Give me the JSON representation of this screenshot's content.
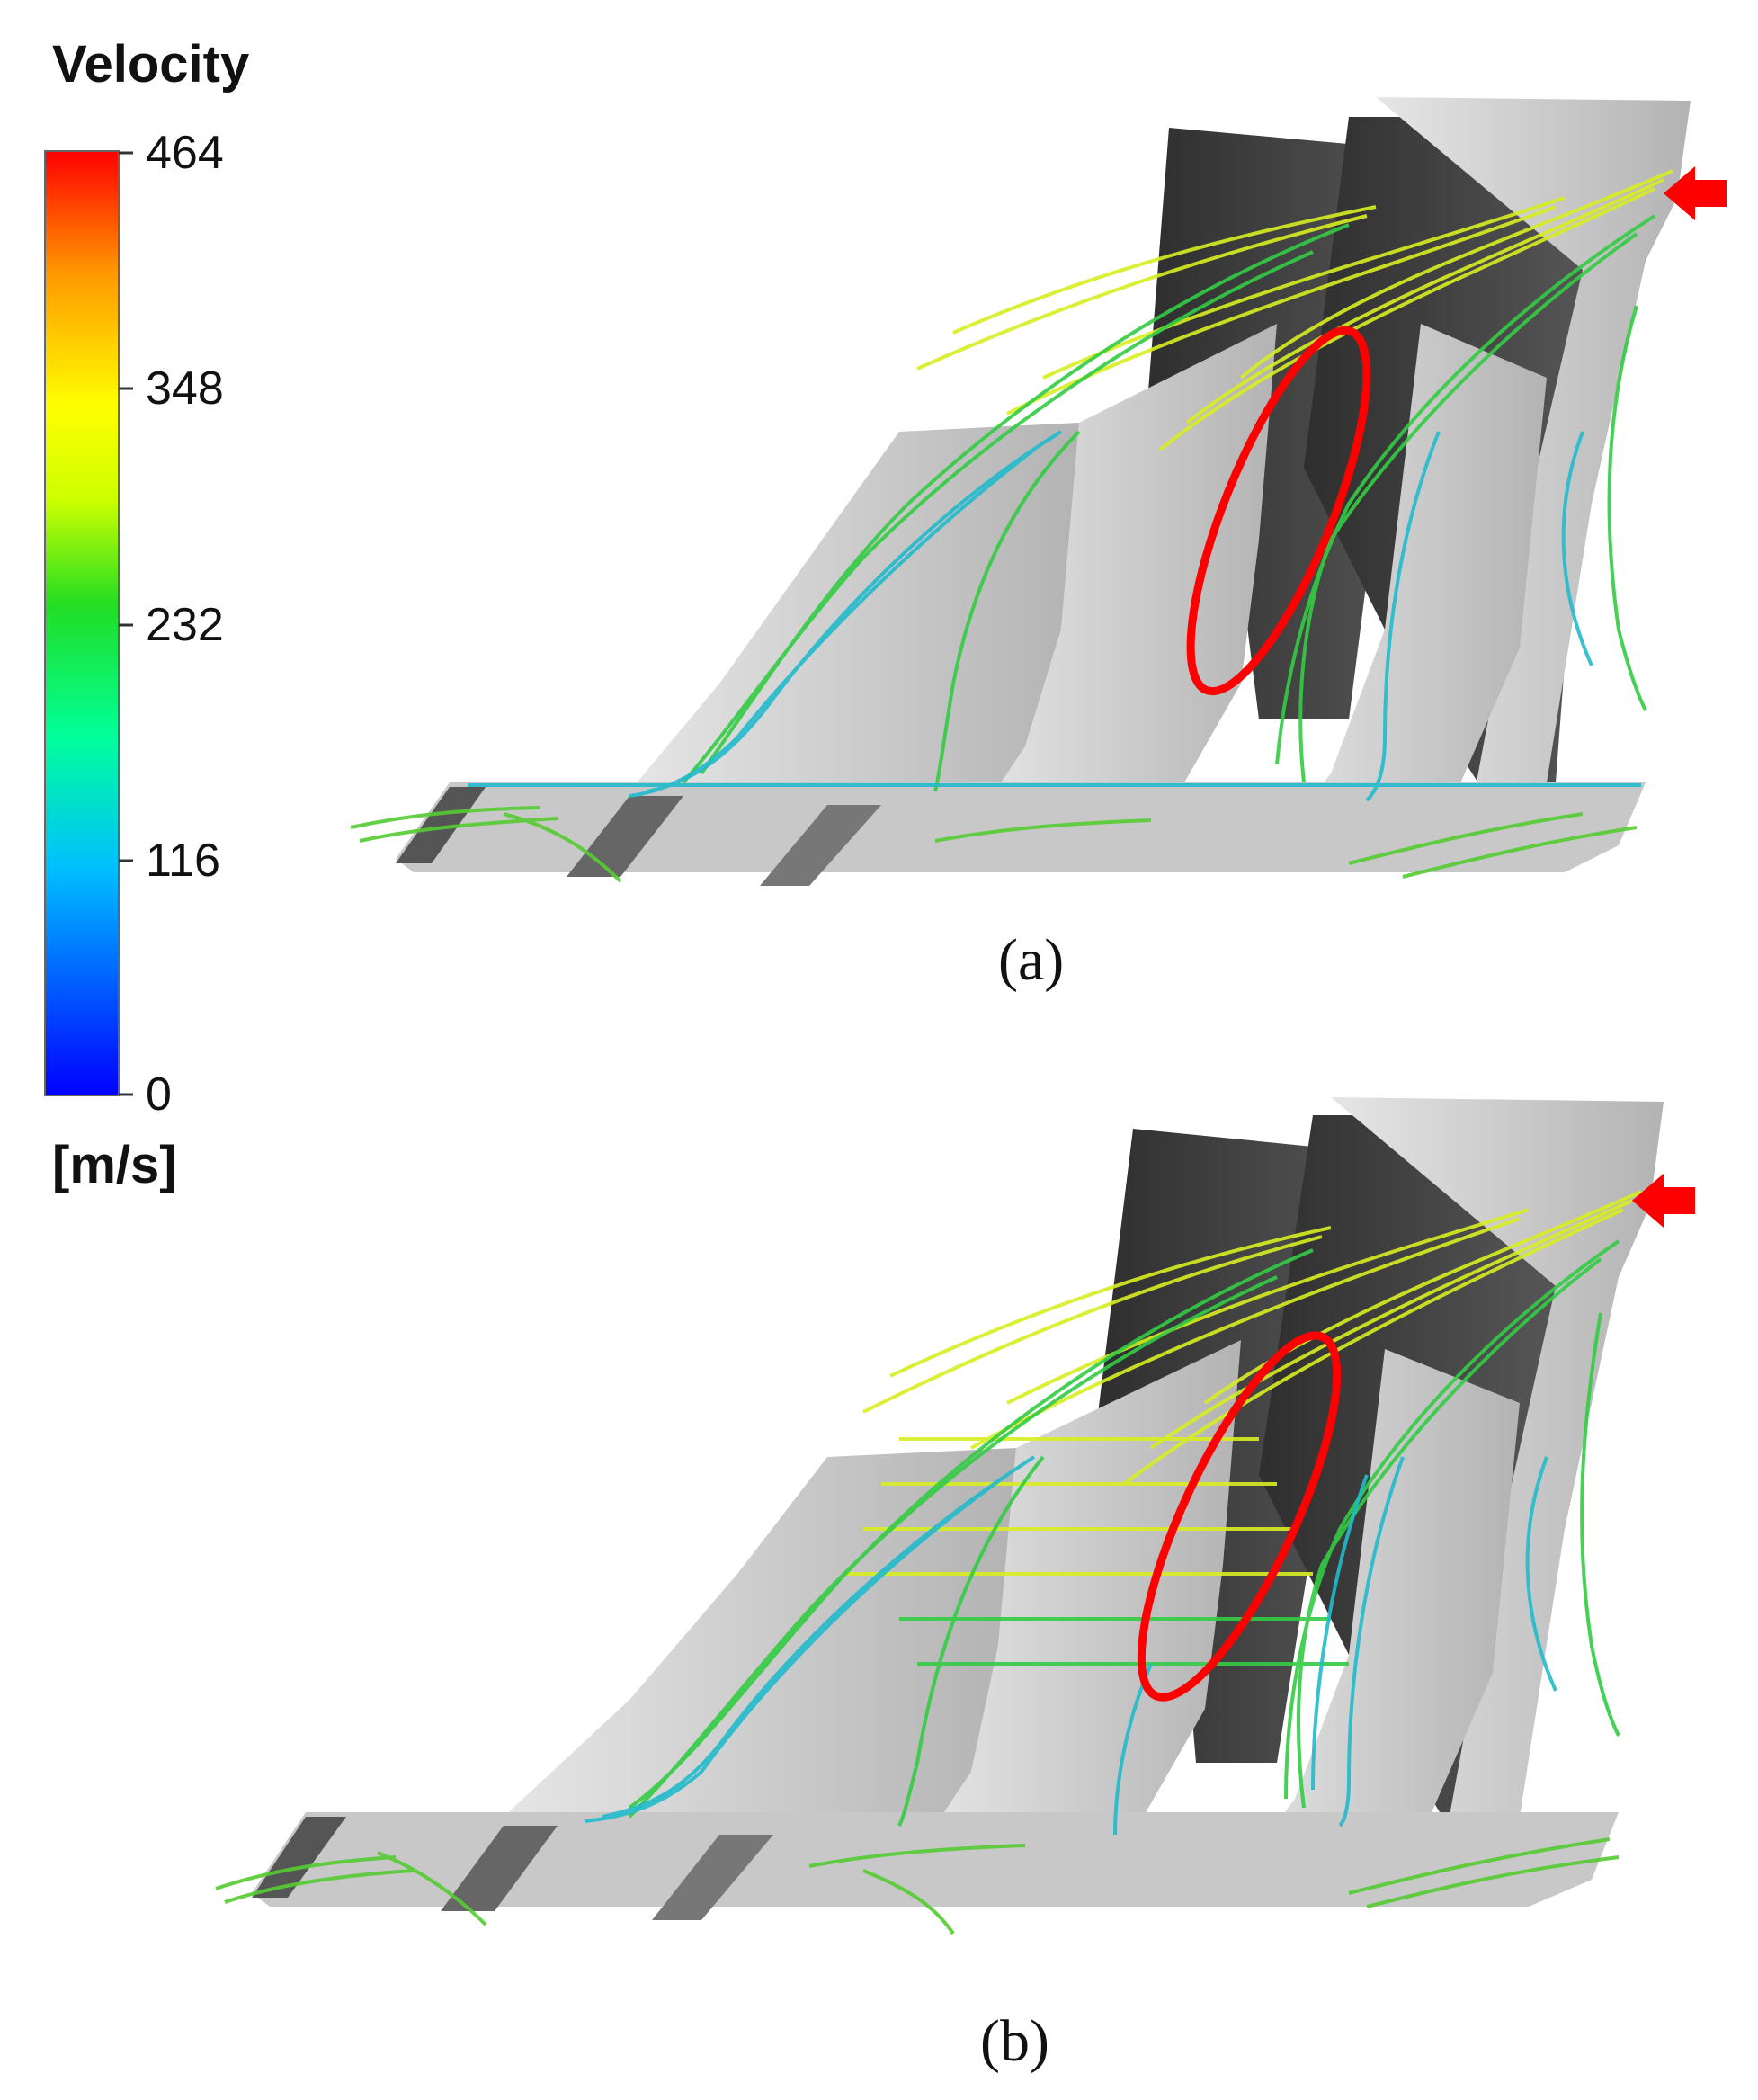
{
  "legend": {
    "title": "Velocity",
    "unit": "[m/s]",
    "ticks": [
      "464",
      "348",
      "232",
      "116",
      "0"
    ],
    "colormap": [
      "#0000ff",
      "#00bfff",
      "#00ff9a",
      "#22dd22",
      "#ccff00",
      "#ffff00",
      "#ff9900",
      "#ff0000"
    ]
  },
  "panels": [
    {
      "label": "(a)"
    },
    {
      "label": "(b)"
    }
  ],
  "colors": {
    "blade_dark": "#3a3a3a",
    "blade_light": "#c4c4c4",
    "highlight": "#ff0000",
    "streamline_fast": "#d8ee22",
    "streamline_mid": "#33cc44",
    "streamline_slow": "#22bbcc"
  }
}
